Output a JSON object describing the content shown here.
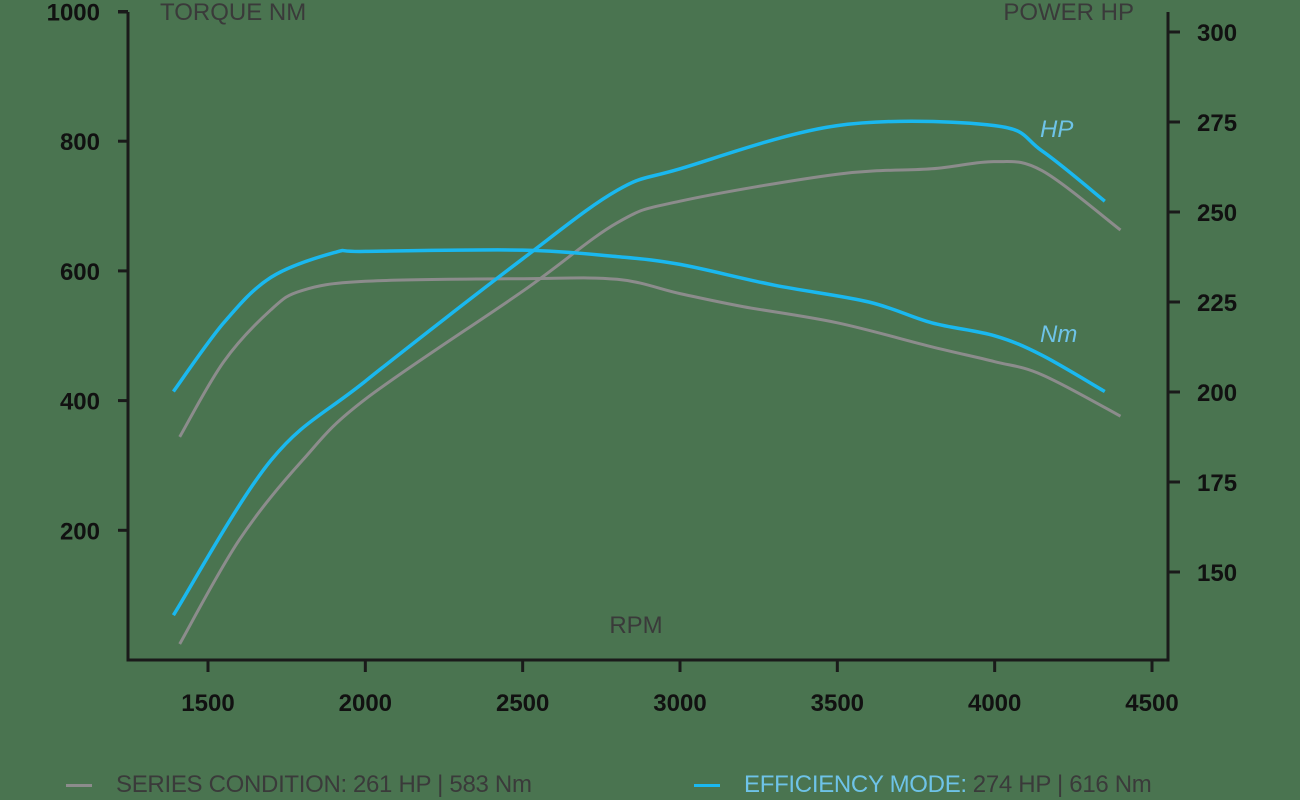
{
  "colors": {
    "background": "#4a7450",
    "series_condition": "#8c8c8c",
    "efficiency_mode": "#1ab8ef",
    "efficiency_label": "#6ec3e8",
    "axis": "#1a1a1a",
    "title_text": "#3a3a3a"
  },
  "chart_data": {
    "type": "line",
    "title": "",
    "xlabel": "RPM",
    "ylabel_left": "TORQUE NM",
    "ylabel_right": "POWER HP",
    "xlim": [
      1250,
      4550
    ],
    "ylim_left": [
      0,
      1000
    ],
    "ylim_right": [
      126,
      308
    ],
    "x_ticks": [
      1500,
      2000,
      2500,
      3000,
      3500,
      4000,
      4500
    ],
    "y_left_ticks": [
      200,
      400,
      600,
      800,
      1000
    ],
    "y_right_ticks": [
      150,
      175,
      200,
      225,
      250,
      275,
      300
    ],
    "grid": false,
    "legend_position": "bottom",
    "curve_labels": {
      "hp": "HP",
      "nm": "Nm"
    },
    "series": [
      {
        "name": "Series Condition Torque",
        "group": "series_condition",
        "axis": "left",
        "unit": "Nm",
        "x": [
          1410,
          1550,
          1700,
          1800,
          2000,
          2500,
          2800,
          3000,
          3200,
          3500,
          3800,
          4000,
          4150,
          4400
        ],
        "values": [
          344,
          460,
          540,
          570,
          584,
          588,
          587,
          565,
          545,
          520,
          483,
          460,
          440,
          376
        ]
      },
      {
        "name": "Efficiency Mode Torque",
        "group": "efficiency_mode",
        "axis": "left",
        "unit": "Nm",
        "x": [
          1390,
          1550,
          1700,
          1900,
          2000,
          2500,
          2800,
          3000,
          3300,
          3600,
          3800,
          4000,
          4150,
          4350
        ],
        "values": [
          414,
          520,
          590,
          628,
          630,
          632,
          622,
          610,
          578,
          552,
          520,
          500,
          470,
          414
        ]
      },
      {
        "name": "Series Condition Power",
        "group": "series_condition",
        "axis": "right",
        "unit": "HP",
        "x": [
          1410,
          1600,
          1800,
          2000,
          2500,
          2800,
          3000,
          3500,
          3800,
          4000,
          4150,
          4400
        ],
        "values": [
          130,
          159,
          181,
          198,
          228,
          247,
          253,
          260.5,
          262,
          264,
          261.5,
          245
        ]
      },
      {
        "name": "Efficiency Mode Power",
        "group": "efficiency_mode",
        "axis": "right",
        "unit": "HP",
        "x": [
          1390,
          1700,
          2000,
          2500,
          2800,
          3000,
          3500,
          4000,
          4150,
          4350
        ],
        "values": [
          138,
          181,
          203,
          237,
          256,
          262,
          274,
          274,
          267,
          253
        ]
      }
    ]
  },
  "legend": [
    {
      "name": "SERIES CONDITION:",
      "value": "261 HP | 583 Nm",
      "group": "series_condition"
    },
    {
      "name": "EFFICIENCY MODE:",
      "value": "274 HP | 616 Nm",
      "group": "efficiency_mode"
    }
  ]
}
